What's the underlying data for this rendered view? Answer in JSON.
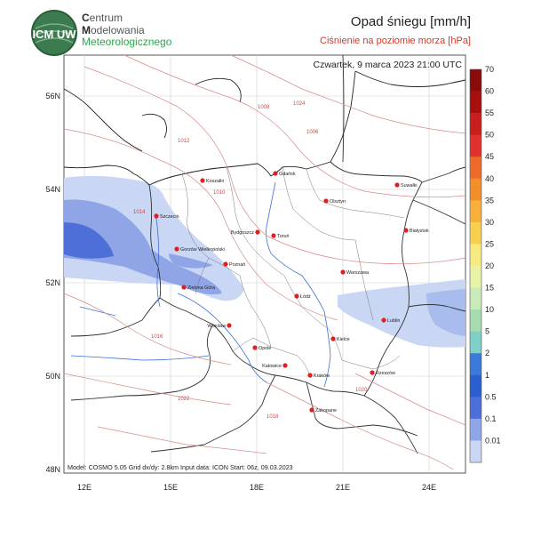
{
  "org": {
    "line1_initial": "C",
    "line1_rest": "entrum",
    "line2_initial": "M",
    "line2_rest": "odelowania",
    "line3_initial": "M",
    "line3_rest": "eteorologicznego",
    "logo_text": "ICM UW"
  },
  "title": "Opad śniegu [mm/h]",
  "subtitle": "Ciśnienie na poziomie morza [hPa]",
  "valid_time": "Czwartek, 9 marca 2023 21:00 UTC",
  "footer": "Model: COSMO 5.05  Grid dx/dy: 2.8km  Input data: ICON  Start: 06z, 09.03.2023",
  "lat_labels": [
    "56N",
    "54N",
    "52N",
    "50N",
    "48N"
  ],
  "lon_labels": [
    "12E",
    "15E",
    "18E",
    "21E",
    "24E"
  ],
  "colorbar": {
    "labels": [
      "70",
      "60",
      "55",
      "50",
      "45",
      "40",
      "35",
      "30",
      "25",
      "20",
      "15",
      "10",
      "5",
      "2",
      "1",
      "0.5",
      "0.1",
      "0.01"
    ],
    "colors": [
      "#8b0a0a",
      "#a81010",
      "#c81e1e",
      "#e03030",
      "#ee6a2a",
      "#f28f2a",
      "#f7b03a",
      "#f7d050",
      "#f6ea80",
      "#e9f3a8",
      "#c8ebb8",
      "#a6dcb0",
      "#7fd0c8",
      "#3a7ad8",
      "#2b5fd0",
      "#4f6fd8",
      "#8fa5e6",
      "#c9d6f4"
    ]
  },
  "cities": [
    {
      "name": "Gdańsk"
    },
    {
      "name": "Suwałki"
    },
    {
      "name": "Koszalin"
    },
    {
      "name": "Olsztyn"
    },
    {
      "name": "Szczecin"
    },
    {
      "name": "Białystok"
    },
    {
      "name": "Bydgoszcz"
    },
    {
      "name": "Toruń"
    },
    {
      "name": "Gorzów Wielkopolski"
    },
    {
      "name": "Poznań"
    },
    {
      "name": "Warszawa"
    },
    {
      "name": "Zielona Góra"
    },
    {
      "name": "Łódź"
    },
    {
      "name": "Lublin"
    },
    {
      "name": "Wrocław"
    },
    {
      "name": "Kielce"
    },
    {
      "name": "Opole"
    },
    {
      "name": "Katowice"
    },
    {
      "name": "Rzeszów"
    },
    {
      "name": "Kraków"
    },
    {
      "name": "Zakopane"
    }
  ],
  "isobar_labels": [
    "1006",
    "1008",
    "1010",
    "1012",
    "1014",
    "1016",
    "1018",
    "1020",
    "1022",
    "1024"
  ]
}
